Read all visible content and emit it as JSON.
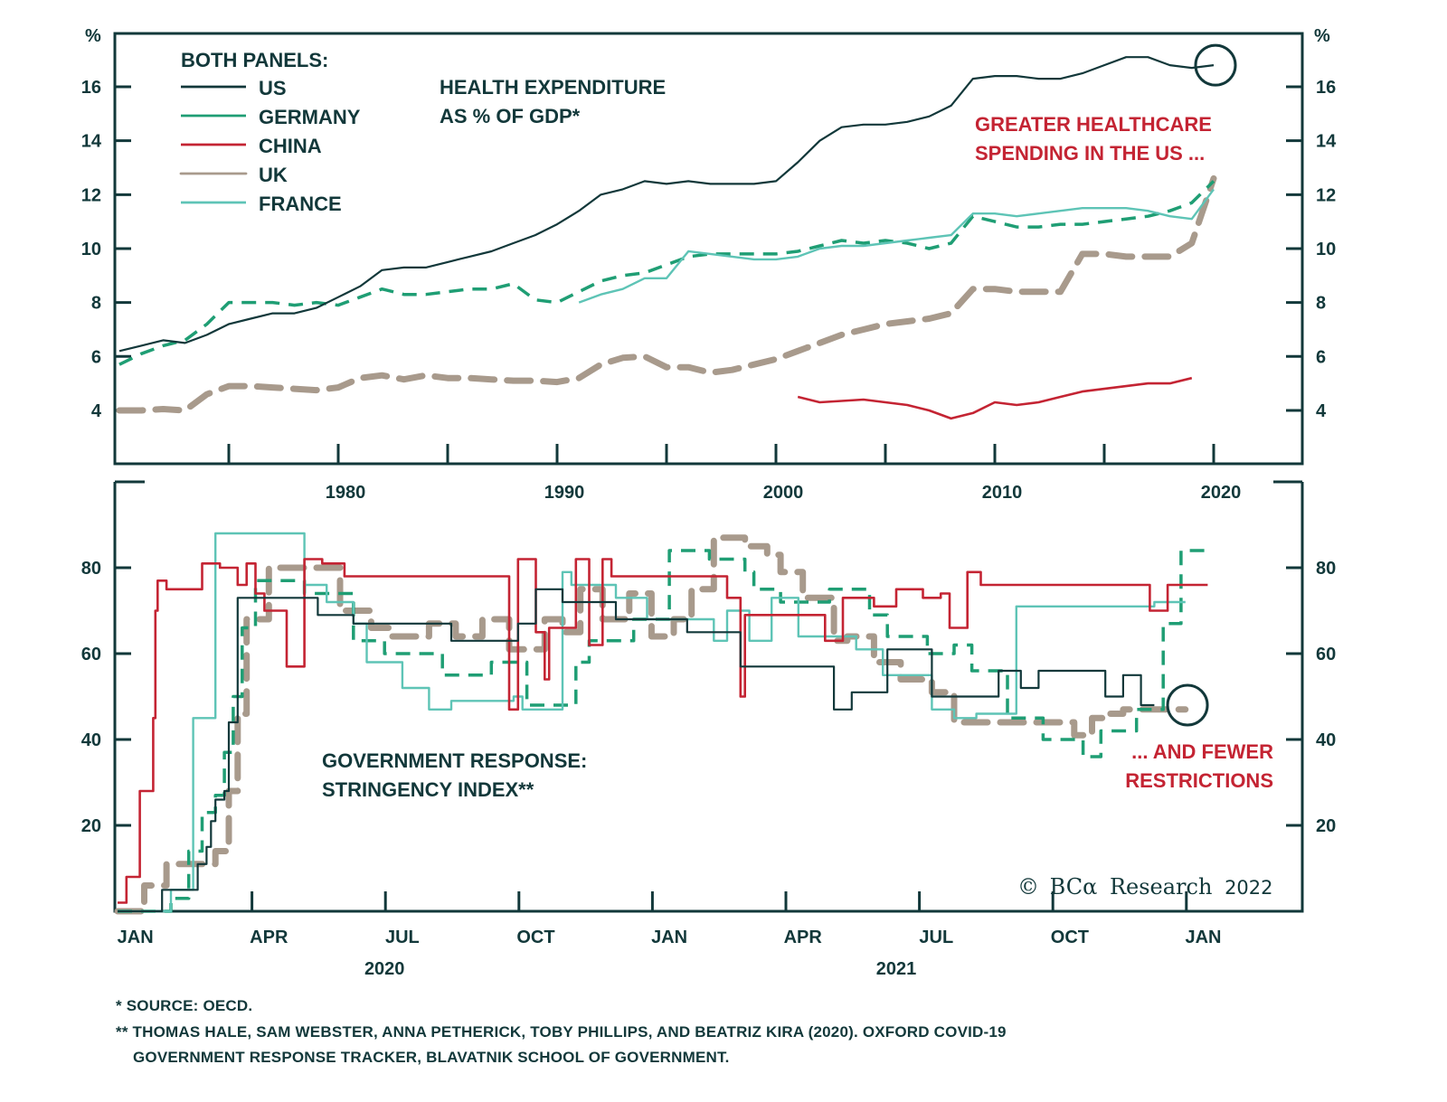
{
  "colors": {
    "axis": "#12383a",
    "us": "#12383a",
    "germany": "#1f9e74",
    "china": "#c42433",
    "uk": "#a89a8c",
    "france": "#5ec4b6",
    "annotation_red": "#c42433"
  },
  "legend": {
    "title": "BOTH PANELS:",
    "items": [
      {
        "key": "us",
        "label": "US"
      },
      {
        "key": "germany",
        "label": "GERMANY"
      },
      {
        "key": "china",
        "label": "CHINA"
      },
      {
        "key": "uk",
        "label": "UK"
      },
      {
        "key": "france",
        "label": "FRANCE"
      }
    ]
  },
  "footnotes": {
    "note1": "*  SOURCE: OECD.",
    "note2": "** THOMAS HALE, SAM WEBSTER, ANNA PETHERICK, TOBY PHILLIPS, AND BEATRIZ KIRA (2020). OXFORD COVID-19",
    "note3": "GOVERNMENT RESPONSE TRACKER, BLAVATNIK SCHOOL OF GOVERNMENT."
  },
  "logo": {
    "copyright": "©",
    "brand": "BCα",
    "name": "Research",
    "year": "2022"
  },
  "chart_data": [
    {
      "type": "line",
      "title": "HEALTH EXPENDITURE AS % OF GDP*",
      "title_lines": [
        "HEALTH EXPENDITURE",
        "AS % OF GDP*"
      ],
      "ylabel": "%",
      "ylim": [
        2,
        18
      ],
      "xlim": [
        1969.8,
        2024.2
      ],
      "yticks": [
        4,
        6,
        8,
        10,
        12,
        14,
        16
      ],
      "xticks_minor": [
        1975,
        1980,
        1985,
        1990,
        1995,
        2000,
        2005,
        2010,
        2015,
        2020
      ],
      "xtick_labels": [
        {
          "x": 1980,
          "label": "1980"
        },
        {
          "x": 1990,
          "label": "1990"
        },
        {
          "x": 2000,
          "label": "2000"
        },
        {
          "x": 2010,
          "label": "2010"
        },
        {
          "x": 2020,
          "label": "2020"
        }
      ],
      "annotation": {
        "lines": [
          "GREATER HEALTHCARE",
          "SPENDING IN THE US ..."
        ],
        "circle_at": {
          "x": 2020,
          "y": 16.8
        }
      },
      "grid": false,
      "series": [
        {
          "name": "US",
          "key": "us",
          "x": [
            1970,
            1971,
            1972,
            1973,
            1974,
            1975,
            1976,
            1977,
            1978,
            1979,
            1980,
            1981,
            1982,
            1983,
            1984,
            1985,
            1986,
            1987,
            1988,
            1989,
            1990,
            1991,
            1992,
            1993,
            1994,
            1995,
            1996,
            1997,
            1998,
            1999,
            2000,
            2001,
            2002,
            2003,
            2004,
            2005,
            2006,
            2007,
            2008,
            2009,
            2010,
            2011,
            2012,
            2013,
            2014,
            2015,
            2016,
            2017,
            2018,
            2019,
            2020
          ],
          "y": [
            6.2,
            6.4,
            6.6,
            6.5,
            6.8,
            7.2,
            7.4,
            7.6,
            7.6,
            7.8,
            8.2,
            8.6,
            9.2,
            9.3,
            9.3,
            9.5,
            9.7,
            9.9,
            10.2,
            10.5,
            10.9,
            11.4,
            12.0,
            12.2,
            12.5,
            12.4,
            12.5,
            12.4,
            12.4,
            12.4,
            12.5,
            13.2,
            14.0,
            14.5,
            14.6,
            14.6,
            14.7,
            14.9,
            15.3,
            16.3,
            16.4,
            16.4,
            16.3,
            16.3,
            16.5,
            16.8,
            17.1,
            17.1,
            16.8,
            16.7,
            16.8
          ]
        },
        {
          "name": "GERMANY",
          "key": "germany",
          "x": [
            1970,
            1971,
            1972,
            1973,
            1974,
            1975,
            1976,
            1977,
            1978,
            1979,
            1980,
            1981,
            1982,
            1983,
            1984,
            1985,
            1986,
            1987,
            1988,
            1989,
            1990,
            1991,
            1992,
            1993,
            1994,
            1995,
            1996,
            1997,
            1998,
            1999,
            2000,
            2001,
            2002,
            2003,
            2004,
            2005,
            2006,
            2007,
            2008,
            2009,
            2010,
            2011,
            2012,
            2013,
            2014,
            2015,
            2016,
            2017,
            2018,
            2019,
            2020
          ],
          "y": [
            5.7,
            6.1,
            6.4,
            6.6,
            7.2,
            8.0,
            8.0,
            8.0,
            7.9,
            8.0,
            7.9,
            8.2,
            8.5,
            8.3,
            8.3,
            8.4,
            8.5,
            8.5,
            8.7,
            8.1,
            8.0,
            8.4,
            8.8,
            9.0,
            9.1,
            9.4,
            9.7,
            9.8,
            9.8,
            9.8,
            9.8,
            9.9,
            10.1,
            10.3,
            10.2,
            10.3,
            10.2,
            10.0,
            10.2,
            11.2,
            11.0,
            10.8,
            10.8,
            10.9,
            10.9,
            11.0,
            11.1,
            11.2,
            11.4,
            11.7,
            12.5
          ]
        },
        {
          "name": "CHINA",
          "key": "china",
          "x": [
            2001,
            2002,
            2003,
            2004,
            2005,
            2006,
            2007,
            2008,
            2009,
            2010,
            2011,
            2012,
            2013,
            2014,
            2015,
            2016,
            2017,
            2018,
            2019
          ],
          "y": [
            4.5,
            4.3,
            4.35,
            4.4,
            4.3,
            4.2,
            4.0,
            3.7,
            3.9,
            4.3,
            4.2,
            4.3,
            4.5,
            4.7,
            4.8,
            4.9,
            5.0,
            5.0,
            5.2
          ]
        },
        {
          "name": "UK",
          "key": "uk",
          "x": [
            1970,
            1971,
            1972,
            1973,
            1974,
            1975,
            1976,
            1977,
            1978,
            1979,
            1980,
            1981,
            1982,
            1983,
            1984,
            1985,
            1986,
            1987,
            1988,
            1989,
            1990,
            1991,
            1992,
            1993,
            1994,
            1995,
            1996,
            1997,
            1998,
            1999,
            2000,
            2001,
            2002,
            2003,
            2004,
            2005,
            2006,
            2007,
            2008,
            2009,
            2010,
            2011,
            2012,
            2013,
            2014,
            2015,
            2016,
            2017,
            2018,
            2019,
            2020
          ],
          "y": [
            4.0,
            4.0,
            4.05,
            4.0,
            4.6,
            4.9,
            4.9,
            4.85,
            4.8,
            4.75,
            4.85,
            5.2,
            5.3,
            5.15,
            5.3,
            5.2,
            5.2,
            5.15,
            5.1,
            5.1,
            5.05,
            5.2,
            5.7,
            5.95,
            6.0,
            5.6,
            5.6,
            5.4,
            5.5,
            5.7,
            5.9,
            6.2,
            6.5,
            6.8,
            7.0,
            7.2,
            7.3,
            7.4,
            7.6,
            8.5,
            8.5,
            8.4,
            8.4,
            8.4,
            9.8,
            9.8,
            9.7,
            9.7,
            9.7,
            10.2,
            12.6
          ]
        },
        {
          "name": "FRANCE",
          "key": "france",
          "x": [
            1991,
            1992,
            1993,
            1994,
            1995,
            1996,
            1997,
            1998,
            1999,
            2000,
            2001,
            2002,
            2003,
            2004,
            2005,
            2006,
            2007,
            2008,
            2009,
            2010,
            2011,
            2012,
            2013,
            2014,
            2015,
            2016,
            2017,
            2018,
            2019,
            2020
          ],
          "y": [
            8.0,
            8.3,
            8.5,
            8.9,
            8.9,
            9.9,
            9.8,
            9.7,
            9.6,
            9.6,
            9.7,
            10.0,
            10.1,
            10.1,
            10.2,
            10.3,
            10.4,
            10.5,
            11.3,
            11.3,
            11.2,
            11.3,
            11.4,
            11.5,
            11.5,
            11.5,
            11.4,
            11.2,
            11.1,
            12.2
          ]
        }
      ]
    },
    {
      "type": "line",
      "title": "GOVERNMENT RESPONSE: STRINGENCY INDEX**",
      "title_lines": [
        "GOVERNMENT RESPONSE:",
        "STRINGENCY INDEX**"
      ],
      "ylim": [
        0,
        100
      ],
      "yticks": [
        20,
        40,
        60,
        80
      ],
      "x_unit": "months since Jan 1 2020",
      "xlim": [
        0,
        26.7
      ],
      "xtick_labels": [
        {
          "x": 0.4,
          "label": "JAN"
        },
        {
          "x": 3.4,
          "label": "APR"
        },
        {
          "x": 6.4,
          "label": "JUL"
        },
        {
          "x": 9.4,
          "label": "OCT"
        },
        {
          "x": 12.4,
          "label": "JAN"
        },
        {
          "x": 15.4,
          "label": "APR"
        },
        {
          "x": 18.4,
          "label": "JUL"
        },
        {
          "x": 21.4,
          "label": "OCT"
        },
        {
          "x": 24.4,
          "label": "JAN"
        }
      ],
      "xticks_minor": [
        3,
        6,
        9,
        12,
        15,
        18,
        21,
        24
      ],
      "year_labels": [
        {
          "x": 6,
          "label": "2020"
        },
        {
          "x": 17.5,
          "label": "2021"
        }
      ],
      "annotation": {
        "lines": [
          "... AND FEWER",
          "RESTRICTIONS"
        ],
        "circle_at": {
          "x": 23.7,
          "y": 48
        }
      },
      "grid": false,
      "series": [
        {
          "name": "US",
          "key": "us",
          "step": true,
          "x": [
            0,
            1.0,
            1.3,
            1.8,
            2.0,
            2.1,
            2.2,
            2.4,
            2.5,
            2.7,
            3.2,
            4.5,
            5.3,
            6.5,
            7.5,
            9.0,
            9.4,
            10.0,
            10.5,
            11.2,
            11.7,
            12.8,
            13.5,
            14.0,
            14.6,
            15.3,
            16.1,
            16.5,
            17.3,
            18.3,
            18.8,
            19.8,
            20.3,
            20.7,
            21.0,
            21.5,
            22.2,
            22.6,
            23.0,
            23.3
          ],
          "y": [
            0,
            5,
            5,
            11,
            15,
            21,
            26,
            28,
            44,
            73,
            73,
            69,
            67,
            67,
            63,
            67,
            75,
            72,
            72,
            68,
            68,
            65,
            65,
            57,
            57,
            57,
            47,
            51,
            61,
            50,
            50,
            56,
            52,
            56,
            56,
            56,
            50,
            55,
            48,
            48
          ]
        },
        {
          "name": "GERMANY",
          "key": "germany",
          "step": true,
          "x": [
            0,
            1.2,
            1.6,
            1.9,
            2.2,
            2.4,
            2.6,
            2.8,
            3.1,
            3.6,
            4.2,
            5.3,
            6.0,
            6.8,
            7.3,
            8.4,
            9.2,
            10.3,
            10.6,
            11.6,
            12.4,
            13.3,
            14.1,
            14.3,
            14.9,
            15.5,
            16.0,
            16.4,
            16.9,
            17.3,
            18.2,
            18.8,
            19.2,
            19.7,
            20.0,
            20.8,
            21.3,
            21.7,
            22.1,
            22.9,
            23.3,
            23.5,
            23.9,
            24.6
          ],
          "y": [
            0,
            3,
            14,
            23,
            27,
            37,
            50,
            66,
            77,
            77,
            74,
            63,
            60,
            60,
            55,
            58,
            48,
            58,
            63,
            68,
            84,
            82,
            79,
            75,
            72,
            72,
            75,
            75,
            69,
            64,
            60,
            62,
            56,
            56,
            45,
            40,
            40,
            36,
            42,
            47,
            47,
            67,
            84,
            84
          ]
        },
        {
          "name": "CHINA",
          "key": "china",
          "step": true,
          "x": [
            0,
            0.2,
            0.5,
            0.8,
            0.85,
            0.9,
            1.1,
            1.5,
            1.9,
            2.3,
            2.7,
            2.9,
            3.1,
            3.3,
            3.8,
            4.2,
            4.6,
            5.1,
            7.4,
            8.8,
            9.0,
            9.4,
            9.6,
            9.7,
            10.3,
            10.6,
            10.9,
            11.1,
            11.8,
            12.1,
            13.7,
            14.0,
            14.1,
            14.6,
            15.0,
            15.7,
            15.9,
            16.3,
            17.0,
            17.5,
            18.1,
            18.5,
            18.7,
            19.1,
            19.4,
            19.7,
            22.8,
            23.2,
            23.6,
            24.5
          ],
          "y": [
            2,
            8,
            28,
            45,
            70,
            77,
            75,
            75,
            81,
            80,
            76,
            81,
            74,
            70,
            57,
            82,
            81,
            78,
            78,
            47,
            82,
            65,
            54,
            66,
            82,
            62,
            82,
            78,
            78,
            78,
            73,
            50,
            69,
            69,
            69,
            69,
            63,
            73,
            71,
            75,
            73,
            74,
            66,
            79,
            76,
            76,
            76,
            70,
            76,
            76
          ]
        },
        {
          "name": "UK",
          "key": "uk",
          "step": true,
          "x": [
            0,
            0.6,
            1.1,
            1.6,
            2.2,
            2.5,
            2.7,
            2.9,
            3.4,
            4.5,
            5.0,
            5.7,
            6.1,
            7.0,
            7.6,
            8.2,
            8.8,
            9.6,
            10.0,
            10.4,
            10.9,
            11.5,
            12.0,
            12.5,
            12.9,
            13.4,
            13.8,
            14.1,
            14.6,
            14.9,
            15.4,
            16.1,
            16.4,
            17.0,
            17.6,
            18.3,
            18.8,
            19.5,
            20.1,
            21.5,
            21.9,
            22.2,
            22.6,
            23.3,
            24.0
          ],
          "y": [
            0,
            6,
            11,
            11,
            14,
            28,
            46,
            68,
            80,
            80,
            70,
            66,
            64,
            67,
            64,
            68,
            61,
            68,
            65,
            75,
            68,
            74,
            64,
            68,
            75,
            87,
            87,
            85,
            83,
            79,
            73,
            63,
            64,
            58,
            54,
            51,
            44,
            44,
            44,
            41,
            45,
            46,
            47,
            47,
            47
          ]
        },
        {
          "name": "FRANCE",
          "key": "france",
          "step": true,
          "x": [
            0,
            1.2,
            1.7,
            2.2,
            2.3,
            3.0,
            4.2,
            4.7,
            5.3,
            5.6,
            6.4,
            7.0,
            7.5,
            8.3,
            8.9,
            9.1,
            10.0,
            10.2,
            11.2,
            11.9,
            13.4,
            13.7,
            14.2,
            14.7,
            15.3,
            16.1,
            16.6,
            17.2,
            18.3,
            18.8,
            19.3,
            20.2,
            21.5,
            22.7,
            23.3,
            24.0
          ],
          "y": [
            0,
            5,
            45,
            88,
            88,
            88,
            76,
            72,
            67,
            58,
            52,
            47,
            49,
            49,
            50,
            47,
            79,
            76,
            73,
            68,
            63,
            70,
            63,
            73,
            64,
            64,
            61,
            55,
            47,
            45,
            46,
            71,
            71,
            71,
            72,
            72
          ]
        }
      ]
    }
  ]
}
